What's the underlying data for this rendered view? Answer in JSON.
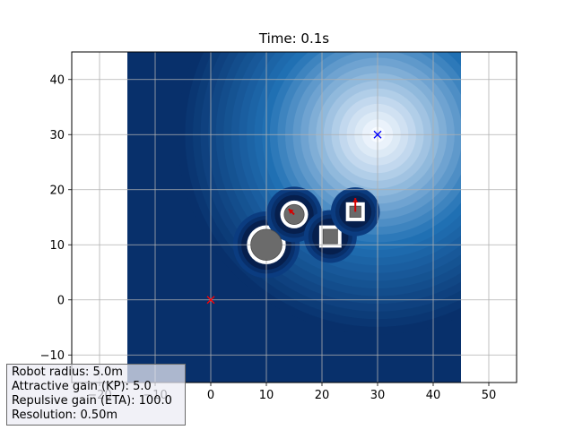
{
  "chart_data": {
    "type": "heatmap",
    "title": "Time: 0.1s",
    "xlabel": "",
    "ylabel": "",
    "xlim": [
      -25,
      55
    ],
    "ylim": [
      -15,
      45
    ],
    "xticks": [
      -20,
      -10,
      0,
      10,
      20,
      30,
      40,
      50
    ],
    "yticks": [
      -10,
      0,
      10,
      20,
      30,
      40
    ],
    "grid": true,
    "field_extent": {
      "x": [
        -15,
        45
      ],
      "y": [
        -15,
        45
      ]
    },
    "colormap": "Blues_r",
    "goal": {
      "x": 30,
      "y": 30,
      "marker": "x",
      "color": "#0000ff"
    },
    "start": {
      "x": 0,
      "y": 0,
      "marker": "x",
      "color": "#ff0000"
    },
    "obstacles": [
      {
        "shape": "circle",
        "x": 10,
        "y": 10,
        "r": 2.8,
        "velocity": [
          0,
          0
        ]
      },
      {
        "shape": "circle",
        "x": 15,
        "y": 15.5,
        "r": 1.8,
        "velocity": [
          -1.0,
          1.0
        ]
      },
      {
        "shape": "square",
        "x": 21.5,
        "y": 11.5,
        "half": 1.3,
        "velocity": [
          0,
          0
        ]
      },
      {
        "shape": "square",
        "x": 26,
        "y": 16,
        "half": 1.0,
        "velocity": [
          0,
          2.5
        ]
      }
    ],
    "colors": {
      "velocity_arrow": "#d40000",
      "obstacle_fill": "#6b6b6b",
      "grid": "#b0b0b0"
    }
  },
  "info": {
    "robot_radius": "Robot radius: 5.0m",
    "attractive_gain": "Attractive gain (KP): 5.0",
    "repulsive_gain": "Repulsive gain (ETA): 100.0",
    "resolution": "Resolution: 0.50m"
  }
}
